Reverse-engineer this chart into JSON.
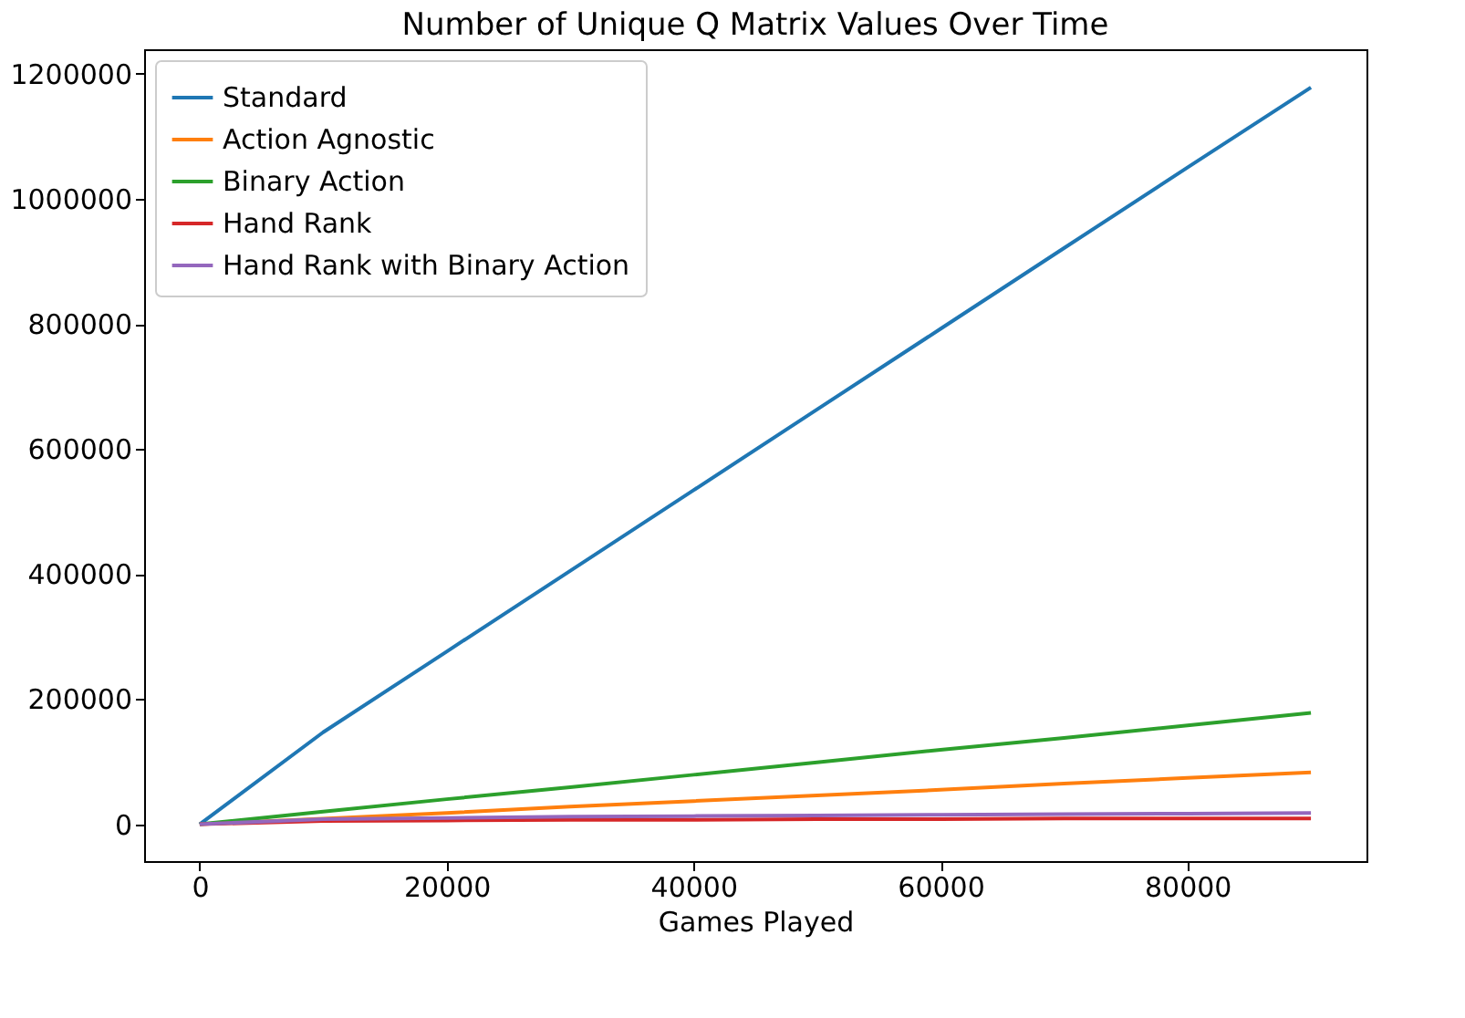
{
  "chart_data": {
    "type": "line",
    "title": "Number of Unique Q Matrix Values Over Time",
    "xlabel": "Games Played",
    "x": [
      0,
      10000,
      20000,
      30000,
      40000,
      50000,
      60000,
      70000,
      80000,
      90000
    ],
    "series": [
      {
        "name": "Standard",
        "color": "#1f77b4",
        "values": [
          0,
          147000,
          276000,
          405000,
          534000,
          663000,
          792000,
          921000,
          1050000,
          1178000
        ]
      },
      {
        "name": "Action Agnostic",
        "color": "#ff7f0e",
        "values": [
          0,
          9000,
          18000,
          28000,
          37000,
          46000,
          55000,
          65000,
          74000,
          83000
        ]
      },
      {
        "name": "Binary Action",
        "color": "#2ca02c",
        "values": [
          0,
          20000,
          40000,
          59000,
          79000,
          99000,
          119000,
          138000,
          158000,
          178000
        ]
      },
      {
        "name": "Hand Rank",
        "color": "#d62728",
        "values": [
          0,
          5000,
          6000,
          7000,
          7000,
          8000,
          8000,
          9000,
          9000,
          9000
        ]
      },
      {
        "name": "Hand Rank with Binary Action",
        "color": "#9467bd",
        "values": [
          0,
          8000,
          10000,
          12000,
          13000,
          14000,
          15000,
          16000,
          17000,
          18000
        ]
      }
    ],
    "xlim": [
      -4500,
      94500
    ],
    "ylim": [
      -59000,
      1239000
    ],
    "xticks": [
      0,
      20000,
      40000,
      60000,
      80000
    ],
    "yticks": [
      0,
      200000,
      400000,
      600000,
      800000,
      1000000,
      1200000
    ],
    "grid": false,
    "legend": "top left",
    "marker": "none",
    "line_style": "solid"
  }
}
